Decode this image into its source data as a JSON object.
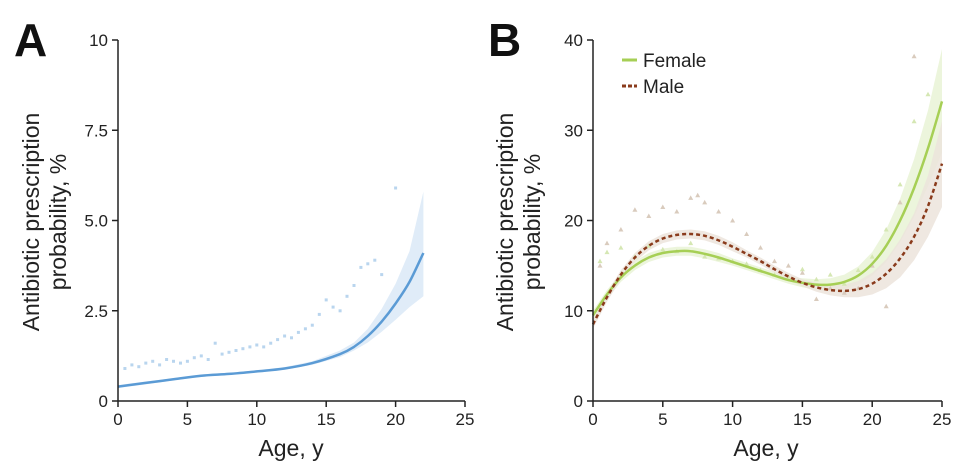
{
  "colors": {
    "panel_a_line": "#5b9bd5",
    "panel_a_band": "#dbe9f7",
    "panel_a_points": "#b9d5ee",
    "female": "#a6cf55",
    "female_band": "#e9f3d6",
    "male": "#8a3b1c",
    "male_band": "#ece4dc",
    "axis": "#222222"
  },
  "chart_data": [
    {
      "panel": "A",
      "type": "line",
      "xlabel": "Age, y",
      "ylabel_lines": [
        "Antibiotic prescription",
        "probability, %"
      ],
      "xlim": [
        0,
        25
      ],
      "ylim": [
        0,
        10
      ],
      "x_ticks": [
        "0",
        "5",
        "10",
        "15",
        "20",
        "25"
      ],
      "y_ticks": [
        "0",
        "2.5",
        "5.0",
        "7.5",
        "10"
      ],
      "series": [
        {
          "x": [
            0,
            2,
            4,
            6,
            8,
            10,
            12,
            14,
            16,
            17,
            18,
            19,
            20,
            21,
            22
          ],
          "y": [
            0.4,
            0.5,
            0.6,
            0.7,
            0.75,
            0.82,
            0.9,
            1.05,
            1.3,
            1.5,
            1.8,
            2.2,
            2.7,
            3.3,
            4.1
          ],
          "ci_lower": [
            0.36,
            0.46,
            0.57,
            0.67,
            0.72,
            0.79,
            0.87,
            1.0,
            1.22,
            1.4,
            1.62,
            1.92,
            2.25,
            2.6,
            2.9
          ],
          "ci_upper": [
            0.44,
            0.54,
            0.63,
            0.73,
            0.78,
            0.85,
            0.94,
            1.1,
            1.4,
            1.62,
            2.0,
            2.55,
            3.25,
            4.15,
            5.8
          ]
        }
      ],
      "observed": {
        "x": [
          0.5,
          1,
          1.5,
          2,
          2.5,
          3,
          3.5,
          4,
          4.5,
          5,
          5.5,
          6,
          6.5,
          7,
          7.5,
          8,
          8.5,
          9,
          9.5,
          10,
          10.5,
          11,
          11.5,
          12,
          12.5,
          13,
          13.5,
          14,
          14.5,
          15,
          15.5,
          16,
          16.5,
          17,
          17.5,
          18,
          18.5,
          19,
          20
        ],
        "y": [
          0.9,
          1.0,
          0.95,
          1.05,
          1.1,
          1.0,
          1.15,
          1.1,
          1.05,
          1.1,
          1.2,
          1.25,
          1.15,
          1.6,
          1.3,
          1.35,
          1.4,
          1.45,
          1.5,
          1.55,
          1.5,
          1.6,
          1.7,
          1.8,
          1.75,
          1.9,
          2.0,
          2.1,
          2.4,
          2.8,
          2.6,
          2.5,
          2.9,
          3.2,
          3.7,
          3.8,
          3.9,
          3.5,
          5.9
        ]
      }
    },
    {
      "panel": "B",
      "type": "line",
      "xlabel": "Age, y",
      "ylabel_lines": [
        "Antibiotic prescription",
        "probability, %"
      ],
      "xlim": [
        0,
        25
      ],
      "ylim": [
        0,
        40
      ],
      "x_ticks": [
        "0",
        "5",
        "10",
        "15",
        "20",
        "25"
      ],
      "y_ticks": [
        "0",
        "10",
        "20",
        "30",
        "40"
      ],
      "legend_position": "top-left",
      "series": [
        {
          "name": "Female",
          "style": "solid",
          "x": [
            0,
            1,
            2,
            3,
            4,
            5,
            6,
            7,
            8,
            9,
            10,
            11,
            12,
            13,
            14,
            15,
            16,
            17,
            18,
            19,
            20,
            21,
            22,
            23,
            24,
            25
          ],
          "y": [
            9.5,
            11.8,
            13.7,
            15.0,
            15.9,
            16.4,
            16.6,
            16.6,
            16.3,
            15.9,
            15.4,
            14.9,
            14.4,
            13.9,
            13.4,
            13.1,
            12.9,
            12.9,
            13.2,
            13.9,
            15.2,
            17.2,
            20.0,
            23.6,
            28.0,
            33.2
          ],
          "ci_lower": [
            9.0,
            11.3,
            13.2,
            14.5,
            15.4,
            15.9,
            16.1,
            16.1,
            15.8,
            15.4,
            15.0,
            14.5,
            14.0,
            13.5,
            13.0,
            12.6,
            12.3,
            12.2,
            12.4,
            12.9,
            13.9,
            15.4,
            17.6,
            20.4,
            23.8,
            27.5
          ],
          "ci_upper": [
            10.0,
            12.3,
            14.2,
            15.5,
            16.4,
            16.9,
            17.1,
            17.1,
            16.8,
            16.4,
            15.8,
            15.3,
            14.8,
            14.3,
            13.8,
            13.6,
            13.5,
            13.6,
            14.0,
            14.9,
            16.5,
            19.0,
            22.4,
            26.8,
            32.2,
            39.0
          ]
        },
        {
          "name": "Male",
          "style": "dashed",
          "x": [
            0,
            1,
            2,
            3,
            4,
            5,
            6,
            7,
            8,
            9,
            10,
            11,
            12,
            13,
            14,
            15,
            16,
            17,
            18,
            19,
            20,
            21,
            22,
            23,
            24,
            25
          ],
          "y": [
            8.5,
            11.5,
            14.0,
            15.9,
            17.2,
            18.0,
            18.4,
            18.5,
            18.3,
            17.8,
            17.1,
            16.3,
            15.5,
            14.6,
            13.8,
            13.1,
            12.6,
            12.3,
            12.2,
            12.4,
            13.0,
            14.1,
            15.8,
            18.2,
            21.6,
            26.3
          ],
          "ci_lower": [
            8.0,
            11.0,
            13.5,
            15.4,
            16.7,
            17.5,
            17.9,
            18.0,
            17.8,
            17.3,
            16.6,
            15.9,
            15.1,
            14.2,
            13.4,
            12.7,
            12.1,
            11.7,
            11.5,
            11.5,
            11.8,
            12.5,
            13.7,
            15.6,
            18.2,
            21.5
          ],
          "ci_upper": [
            9.0,
            12.0,
            14.5,
            16.4,
            17.7,
            18.5,
            18.9,
            19.0,
            18.8,
            18.3,
            17.6,
            16.7,
            15.9,
            15.0,
            14.2,
            13.5,
            13.1,
            12.9,
            12.9,
            13.3,
            14.2,
            15.7,
            17.9,
            20.8,
            25.0,
            31.0
          ]
        }
      ],
      "observed": [
        {
          "name": "Female",
          "x": [
            0.5,
            1,
            2,
            3,
            4,
            5,
            6,
            7,
            8,
            9,
            10,
            11,
            12,
            13,
            14,
            15,
            16,
            17,
            18,
            19,
            20,
            21,
            22,
            23,
            24
          ],
          "y": [
            15.5,
            16.5,
            17.0,
            16.0,
            17.2,
            16.8,
            16.6,
            17.5,
            16.0,
            15.8,
            15.5,
            15.2,
            14.5,
            14.0,
            13.8,
            14.6,
            13.5,
            14.0,
            13.0,
            14.5,
            16.0,
            19.0,
            24.0,
            31.0,
            34.0
          ]
        },
        {
          "name": "Male",
          "x": [
            0.5,
            1,
            2,
            3,
            4,
            5,
            6,
            7,
            7.5,
            8,
            9,
            10,
            11,
            12,
            13,
            14,
            15,
            16,
            17,
            18,
            19,
            20,
            21,
            22,
            23
          ],
          "y": [
            15.0,
            17.5,
            19.0,
            21.2,
            20.5,
            21.5,
            21.0,
            22.5,
            22.8,
            22.0,
            21.0,
            20.0,
            18.5,
            17.0,
            15.5,
            15.0,
            14.2,
            11.3,
            12.5,
            12.0,
            12.5,
            15.0,
            10.5,
            22.0,
            38.2
          ]
        }
      ]
    }
  ]
}
